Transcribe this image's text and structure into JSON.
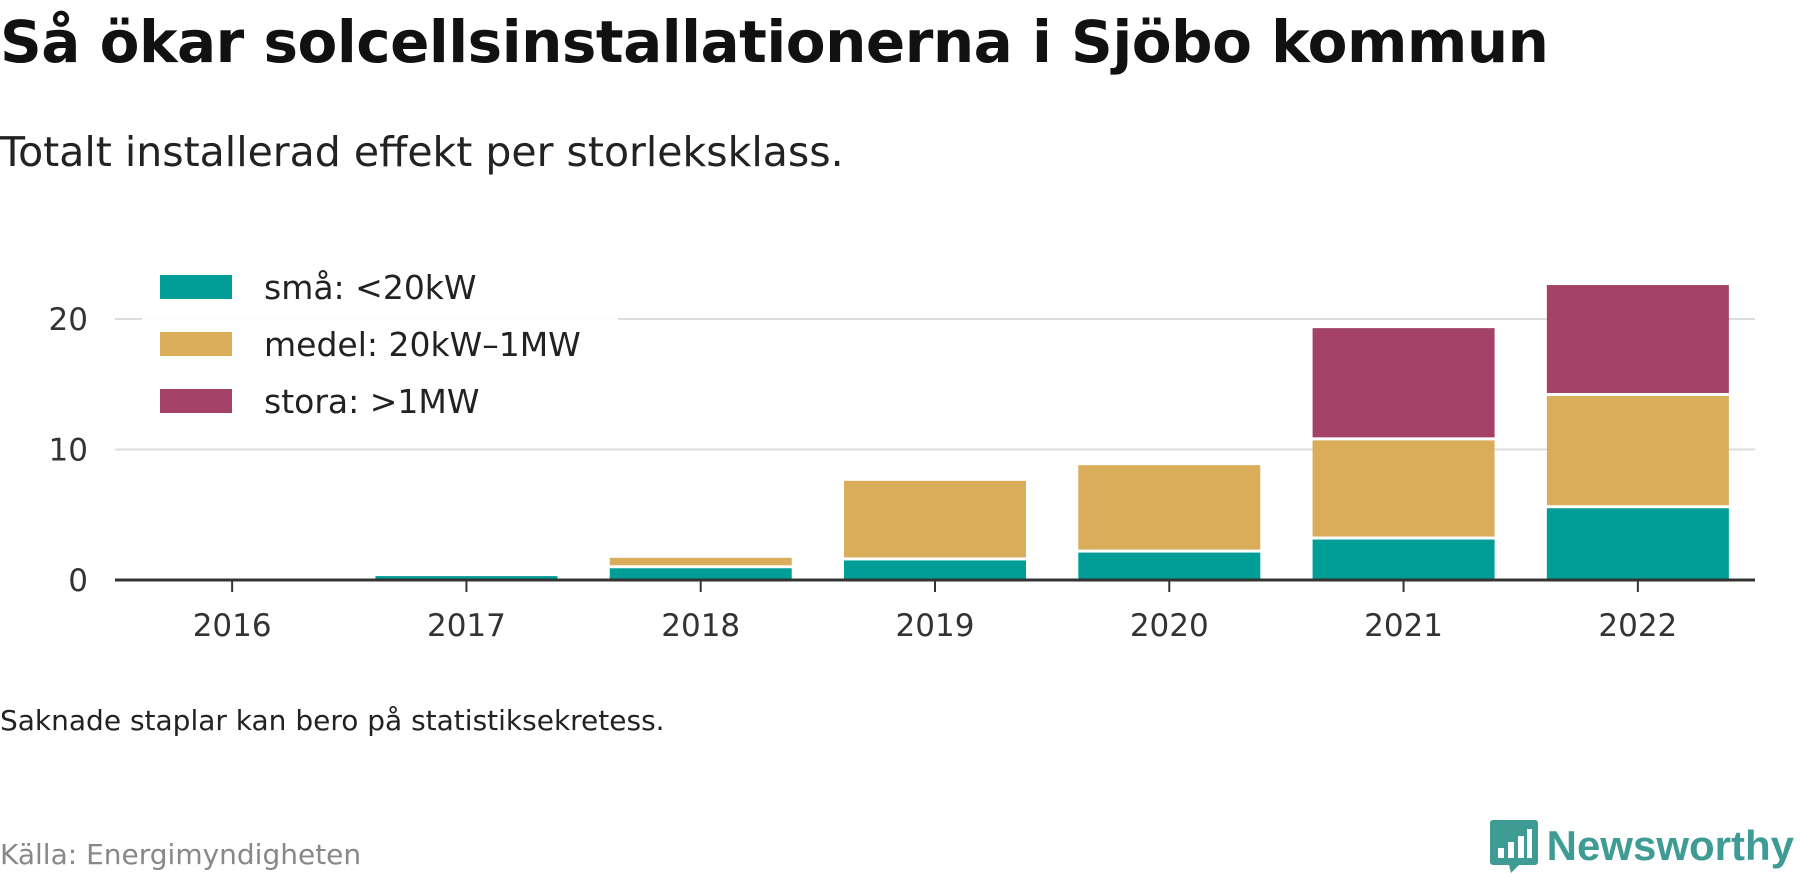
{
  "title": "Så ökar solcellsinstallationerna i Sjöbo kommun",
  "subtitle": "Totalt installerad effekt per storleksklass.",
  "note": "Saknade staplar kan bero på statistiksekretess.",
  "source": "Källa: Energimyndigheten",
  "brand": {
    "name": "Newsworthy",
    "logo_icon": "newsworthy-chart-bubble-icon"
  },
  "colors": {
    "small": "#009e96",
    "medium": "#d9ad5a",
    "large": "#a44166",
    "grid": "#dddddd",
    "axis": "#333333"
  },
  "chart_data": {
    "type": "bar",
    "stacked": true,
    "categories": [
      "2016",
      "2017",
      "2018",
      "2019",
      "2020",
      "2021",
      "2022"
    ],
    "series": [
      {
        "name": "små: <20kW",
        "color": "#009e96",
        "values": [
          0,
          0.3,
          0.9,
          1.5,
          2.1,
          3.1,
          5.5
        ]
      },
      {
        "name": "medel: 20kW–1MW",
        "color": "#d9ad5a",
        "values": [
          0,
          0,
          0.8,
          6.1,
          6.7,
          7.6,
          8.6
        ]
      },
      {
        "name": "stora: >1MW",
        "color": "#a44166",
        "values": [
          0,
          0,
          0,
          0,
          0,
          8.6,
          8.5
        ]
      }
    ],
    "yticks": [
      0,
      10,
      20
    ],
    "ylim": [
      0,
      23
    ],
    "grid": true,
    "legend": "top-left"
  }
}
